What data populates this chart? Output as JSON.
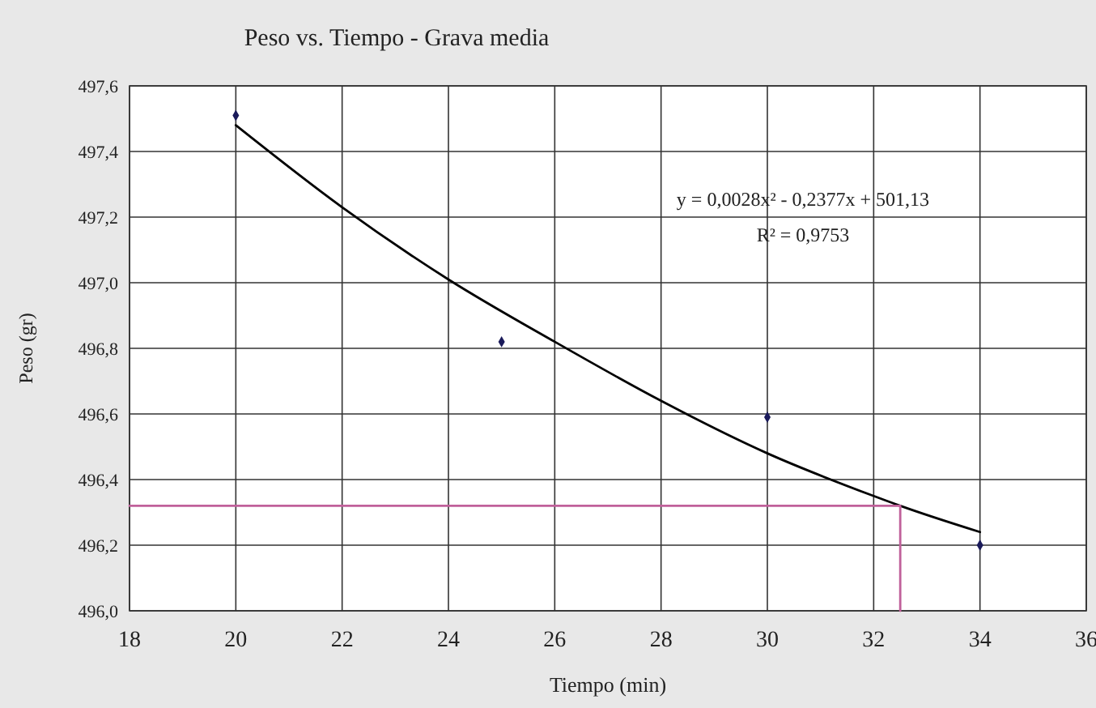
{
  "chart_data": {
    "type": "scatter",
    "title": "Peso vs. Tiempo - Grava media",
    "xlabel": "Tiempo (min)",
    "ylabel": "Peso (gr)",
    "annotations": [
      "y = 0,0028x² - 0,2377x + 501,13",
      "R² = 0,9753"
    ],
    "xlim": [
      18,
      36
    ],
    "xticks": [
      18,
      20,
      22,
      24,
      26,
      28,
      30,
      32,
      34,
      36
    ],
    "ylim": [
      496,
      497.6
    ],
    "yticks": [
      {
        "value": 496,
        "label": "496,0"
      },
      {
        "value": 496.2,
        "label": "496,2"
      },
      {
        "value": 496.4,
        "label": "496,4"
      },
      {
        "value": 496.6,
        "label": "496,6"
      },
      {
        "value": 496.8,
        "label": "496,8"
      },
      {
        "value": 497,
        "label": "497,0"
      },
      {
        "value": 497.2,
        "label": "497,2"
      },
      {
        "value": 497.4,
        "label": "497,4"
      },
      {
        "value": 497.6,
        "label": "497,6"
      }
    ],
    "grid": true,
    "series": [
      {
        "color": "#1a1a5a",
        "marker": "diamond",
        "x": [
          20,
          25,
          30,
          34
        ],
        "values": [
          497.51,
          496.82,
          496.59,
          496.2
        ]
      },
      {
        "type": "line",
        "color": "#000000",
        "marker": "none",
        "x": [
          20,
          22,
          24,
          26,
          28,
          30,
          32,
          32.5,
          34
        ],
        "values": [
          497.48,
          497.23,
          497.01,
          496.82,
          496.64,
          496.48,
          496.35,
          496.32,
          496.24
        ]
      },
      {
        "type": "line",
        "color": "#c0609a",
        "marker": "none",
        "x": [
          18,
          32.5,
          32.5
        ],
        "values": [
          496.32,
          496.32,
          496.0
        ]
      }
    ]
  }
}
